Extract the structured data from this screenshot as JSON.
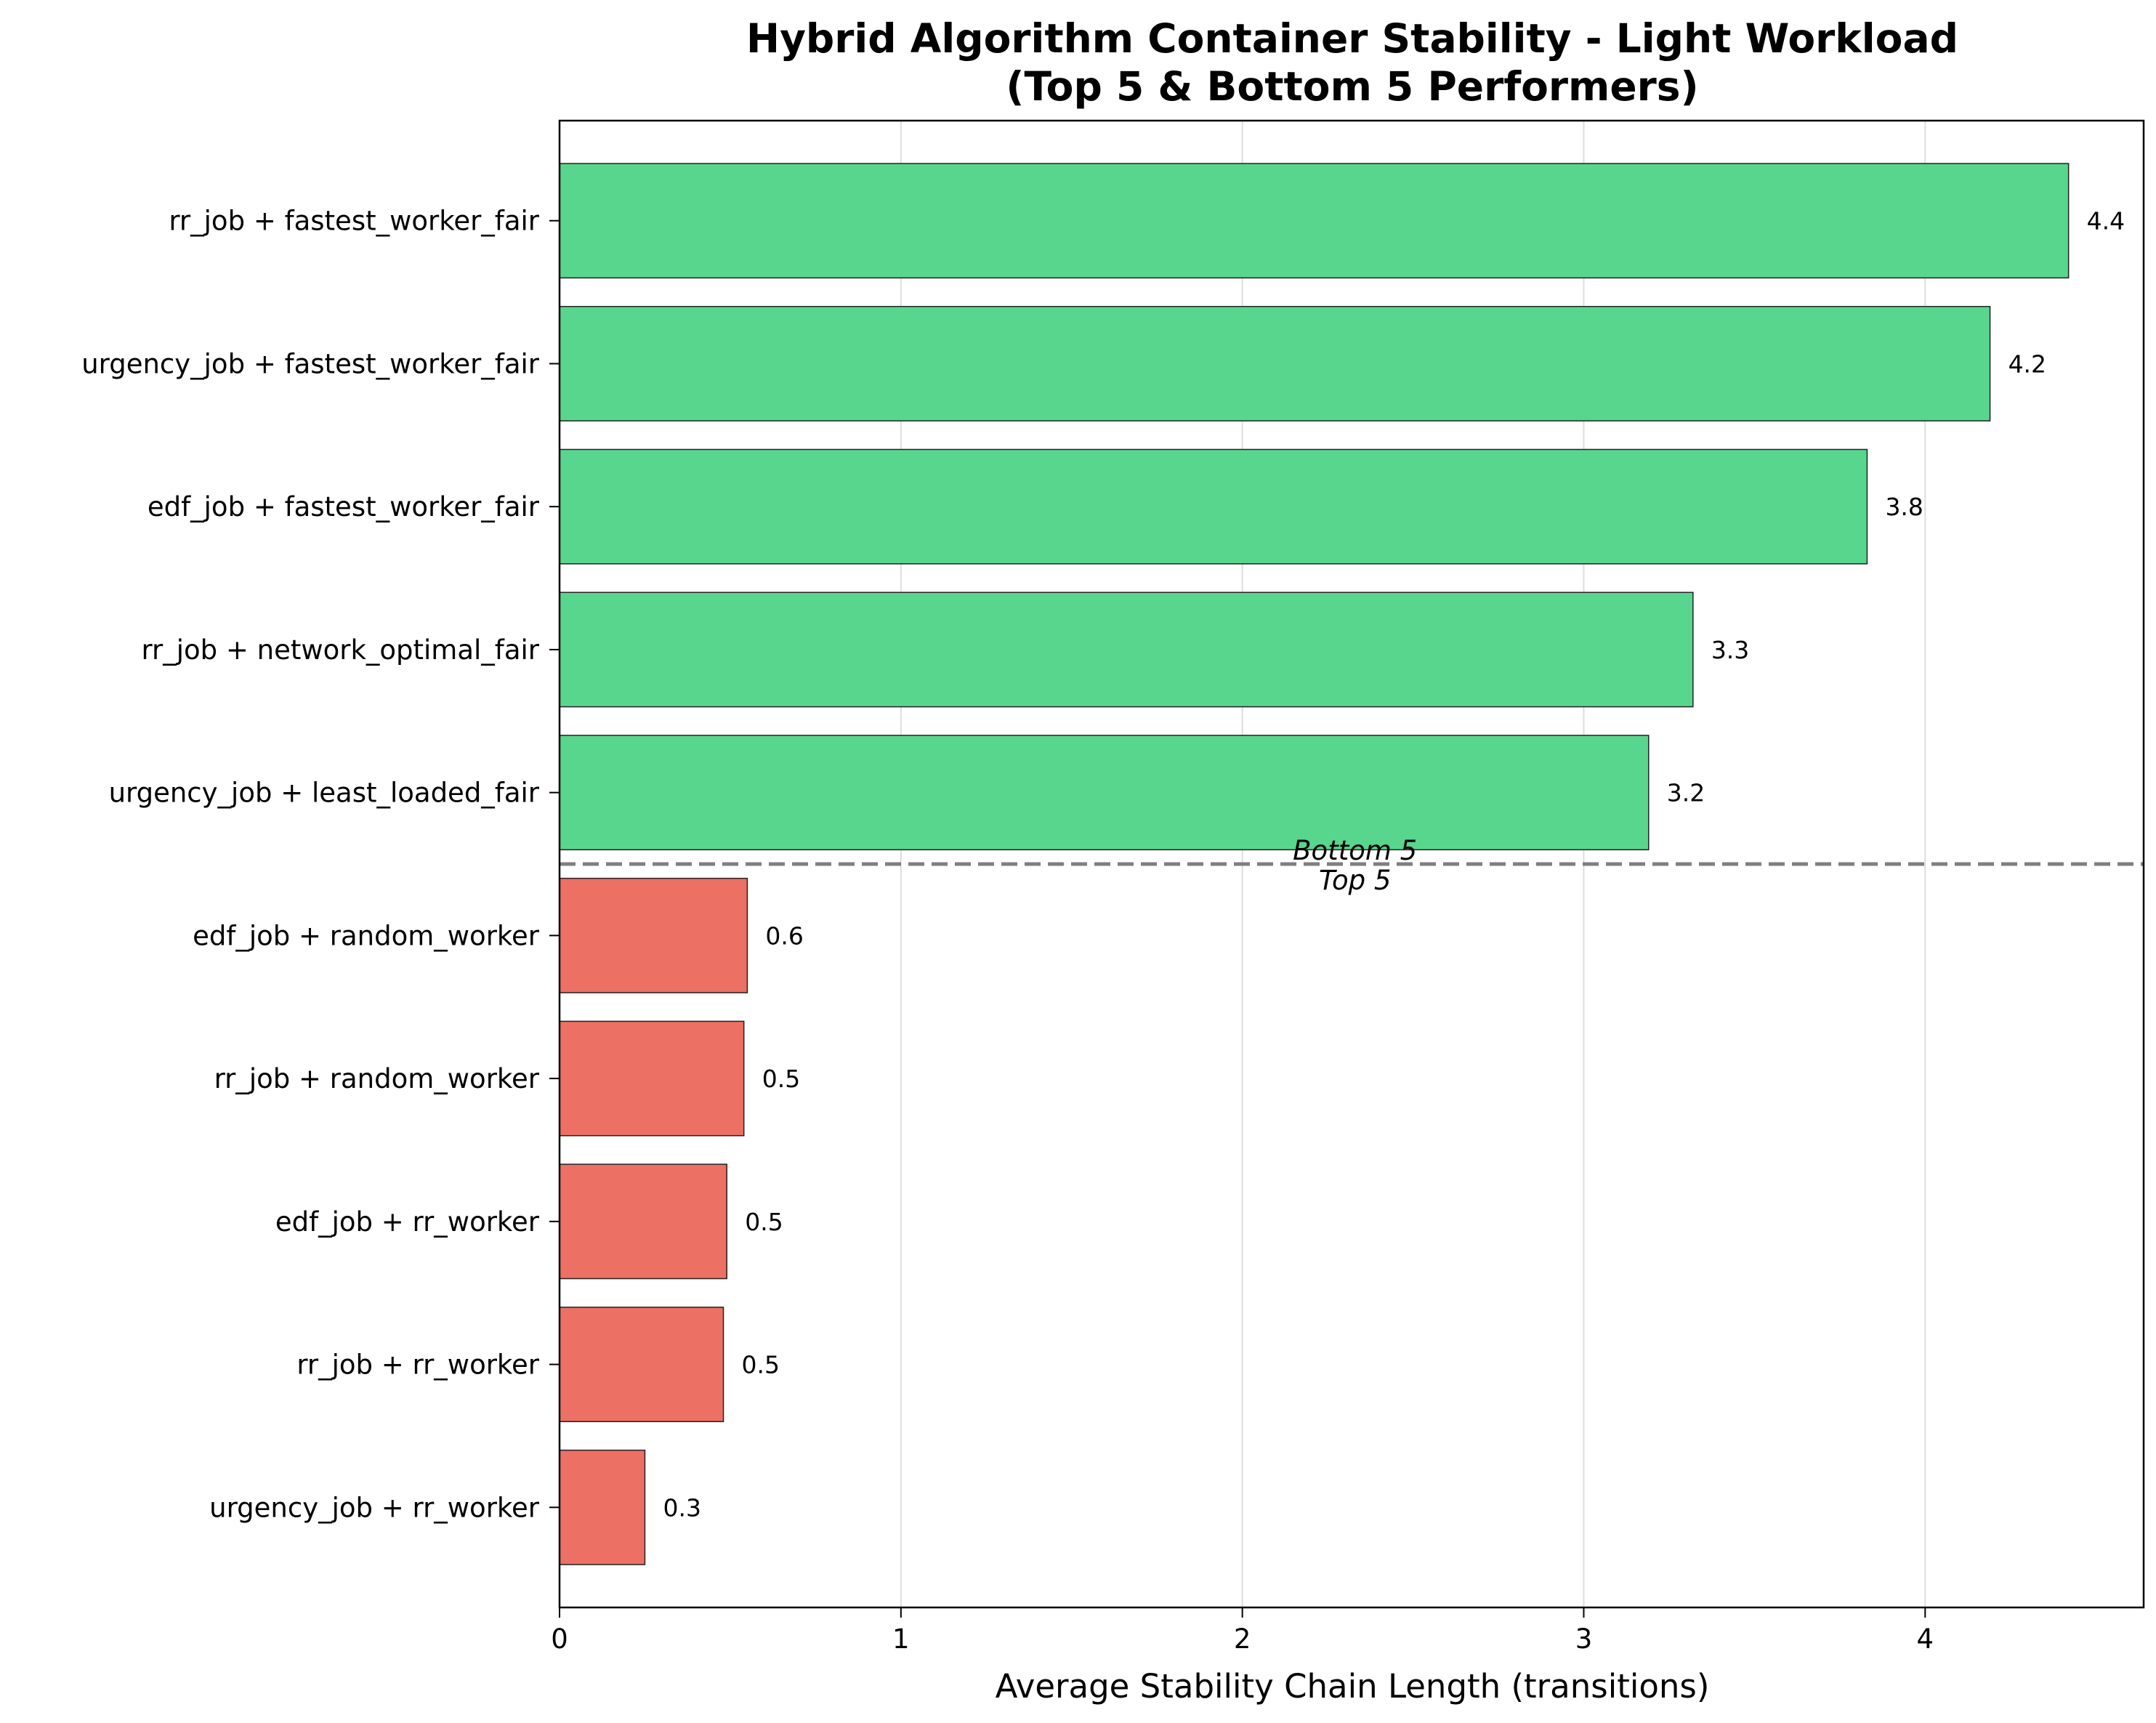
{
  "chart_data": {
    "type": "bar",
    "orientation": "horizontal",
    "title_lines": [
      "Hybrid Algorithm Container Stability - Light Workload",
      "(Top 5 & Bottom 5 Performers)"
    ],
    "xlabel": "Average Stability Chain Length (transitions)",
    "ylabel": "",
    "xlim": [
      0,
      4.64
    ],
    "xticks": [
      0,
      1,
      2,
      3,
      4
    ],
    "grid": "x",
    "categories": [
      "rr_job + fastest_worker_fair",
      "urgency_job + fastest_worker_fair",
      "edf_job + fastest_worker_fair",
      "rr_job + network_optimal_fair",
      "urgency_job + least_loaded_fair",
      "edf_job + random_worker",
      "rr_job + random_worker",
      "edf_job + rr_worker",
      "rr_job + rr_worker",
      "urgency_job + rr_worker"
    ],
    "values": [
      4.42,
      4.19,
      3.83,
      3.32,
      3.19,
      0.55,
      0.54,
      0.49,
      0.48,
      0.25
    ],
    "value_labels": [
      "4.4",
      "4.2",
      "3.8",
      "3.3",
      "3.2",
      "0.6",
      "0.5",
      "0.5",
      "0.5",
      "0.3"
    ],
    "groups": [
      "top",
      "top",
      "top",
      "top",
      "top",
      "bottom",
      "bottom",
      "bottom",
      "bottom",
      "bottom"
    ],
    "colors": {
      "top": "#58d68d",
      "bottom": "#ec7063"
    },
    "divider": {
      "style": "dashed",
      "label_above": "Bottom 5",
      "label_below": "Top 5"
    }
  }
}
